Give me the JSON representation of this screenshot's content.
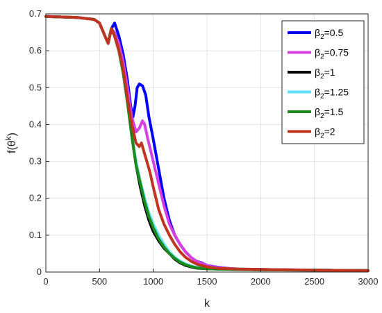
{
  "chart_data": {
    "type": "line",
    "xlabel": "k",
    "ylabel": "f(θ^k)",
    "xlim": [
      0,
      3000
    ],
    "ylim": [
      0,
      0.7
    ],
    "xticks": [
      "0",
      "500",
      "1000",
      "1500",
      "2000",
      "2500",
      "3000"
    ],
    "yticks": [
      "0",
      "0.1",
      "0.2",
      "0.3",
      "0.4",
      "0.5",
      "0.6",
      "0.7"
    ],
    "grid": true,
    "legend_position": "top-right",
    "legend_symbol": "β",
    "series": [
      {
        "name": "β_2=0.5",
        "sub": "2",
        "val": "=0.5",
        "color": "#0000ff",
        "x": [
          0,
          300,
          450,
          500,
          550,
          580,
          610,
          640,
          680,
          720,
          760,
          790,
          810,
          830,
          850,
          870,
          900,
          930,
          960,
          1000,
          1050,
          1100,
          1150,
          1200,
          1250,
          1300,
          1350,
          1400,
          1450,
          1500,
          1600,
          1700,
          1800,
          2000,
          2500,
          3000
        ],
        "y": [
          0.693,
          0.69,
          0.685,
          0.675,
          0.64,
          0.62,
          0.66,
          0.675,
          0.64,
          0.59,
          0.52,
          0.45,
          0.42,
          0.45,
          0.5,
          0.51,
          0.505,
          0.48,
          0.42,
          0.36,
          0.28,
          0.2,
          0.14,
          0.1,
          0.075,
          0.055,
          0.04,
          0.03,
          0.025,
          0.018,
          0.013,
          0.01,
          0.008,
          0.007,
          0.005,
          0.004
        ]
      },
      {
        "name": "β_2=0.75",
        "sub": "2",
        "val": "=0.75",
        "color": "#d63fe0",
        "x": [
          0,
          300,
          450,
          500,
          550,
          580,
          610,
          640,
          680,
          720,
          760,
          800,
          840,
          870,
          900,
          920,
          950,
          1000,
          1050,
          1100,
          1150,
          1200,
          1250,
          1300,
          1350,
          1400,
          1450,
          1500,
          1600,
          1700,
          1800,
          2000,
          2500,
          3000
        ],
        "y": [
          0.693,
          0.69,
          0.685,
          0.675,
          0.64,
          0.62,
          0.66,
          0.65,
          0.62,
          0.57,
          0.5,
          0.42,
          0.38,
          0.39,
          0.41,
          0.4,
          0.36,
          0.3,
          0.24,
          0.18,
          0.13,
          0.1,
          0.075,
          0.055,
          0.04,
          0.03,
          0.024,
          0.018,
          0.012,
          0.01,
          0.008,
          0.007,
          0.005,
          0.004
        ]
      },
      {
        "name": "β_2=1",
        "sub": "2",
        "val": "=1",
        "color": "#000000",
        "x": [
          0,
          300,
          450,
          500,
          550,
          580,
          610,
          640,
          680,
          720,
          760,
          800,
          840,
          880,
          920,
          960,
          1000,
          1050,
          1100,
          1150,
          1200,
          1250,
          1300,
          1350,
          1400,
          1500,
          1600,
          1800,
          2000,
          2500,
          3000
        ],
        "y": [
          0.693,
          0.69,
          0.685,
          0.675,
          0.64,
          0.62,
          0.66,
          0.64,
          0.6,
          0.54,
          0.46,
          0.37,
          0.29,
          0.23,
          0.18,
          0.14,
          0.11,
          0.085,
          0.065,
          0.05,
          0.035,
          0.025,
          0.018,
          0.014,
          0.011,
          0.009,
          0.008,
          0.007,
          0.006,
          0.005,
          0.004
        ]
      },
      {
        "name": "β_2=1.25",
        "sub": "2",
        "val": "=1.25",
        "color": "#5ee0ff",
        "x": [
          0,
          300,
          450,
          500,
          550,
          580,
          610,
          640,
          680,
          720,
          760,
          800,
          840,
          880,
          920,
          960,
          1000,
          1050,
          1100,
          1150,
          1200,
          1250,
          1300,
          1350,
          1400,
          1500,
          1600,
          1800,
          2000,
          2500,
          3000
        ],
        "y": [
          0.693,
          0.69,
          0.685,
          0.675,
          0.64,
          0.62,
          0.66,
          0.64,
          0.6,
          0.54,
          0.46,
          0.37,
          0.3,
          0.245,
          0.2,
          0.16,
          0.13,
          0.1,
          0.075,
          0.055,
          0.04,
          0.03,
          0.022,
          0.017,
          0.013,
          0.01,
          0.008,
          0.007,
          0.006,
          0.005,
          0.004
        ]
      },
      {
        "name": "β_2=1.5",
        "sub": "2",
        "val": "=1.5",
        "color": "#1a8a1a",
        "x": [
          0,
          300,
          450,
          500,
          550,
          580,
          610,
          640,
          680,
          720,
          760,
          800,
          840,
          880,
          920,
          960,
          1000,
          1050,
          1100,
          1150,
          1200,
          1250,
          1300,
          1350,
          1400,
          1500,
          1600,
          1800,
          2000,
          2500,
          3000
        ],
        "y": [
          0.693,
          0.69,
          0.685,
          0.675,
          0.64,
          0.62,
          0.66,
          0.64,
          0.6,
          0.54,
          0.46,
          0.37,
          0.29,
          0.24,
          0.19,
          0.15,
          0.12,
          0.09,
          0.068,
          0.05,
          0.037,
          0.027,
          0.02,
          0.015,
          0.012,
          0.009,
          0.008,
          0.007,
          0.006,
          0.005,
          0.004
        ]
      },
      {
        "name": "β_2=2",
        "sub": "2",
        "val": "=2",
        "color": "#c0341f",
        "x": [
          0,
          300,
          450,
          500,
          550,
          580,
          610,
          640,
          680,
          720,
          760,
          800,
          840,
          870,
          890,
          910,
          940,
          970,
          1000,
          1050,
          1100,
          1150,
          1200,
          1250,
          1300,
          1350,
          1400,
          1500,
          1600,
          1800,
          2000,
          2500,
          3000
        ],
        "y": [
          0.693,
          0.69,
          0.685,
          0.675,
          0.64,
          0.62,
          0.66,
          0.64,
          0.6,
          0.55,
          0.47,
          0.4,
          0.35,
          0.34,
          0.35,
          0.33,
          0.3,
          0.27,
          0.23,
          0.17,
          0.13,
          0.1,
          0.075,
          0.055,
          0.04,
          0.03,
          0.022,
          0.014,
          0.01,
          0.008,
          0.007,
          0.005,
          0.004
        ]
      }
    ]
  }
}
